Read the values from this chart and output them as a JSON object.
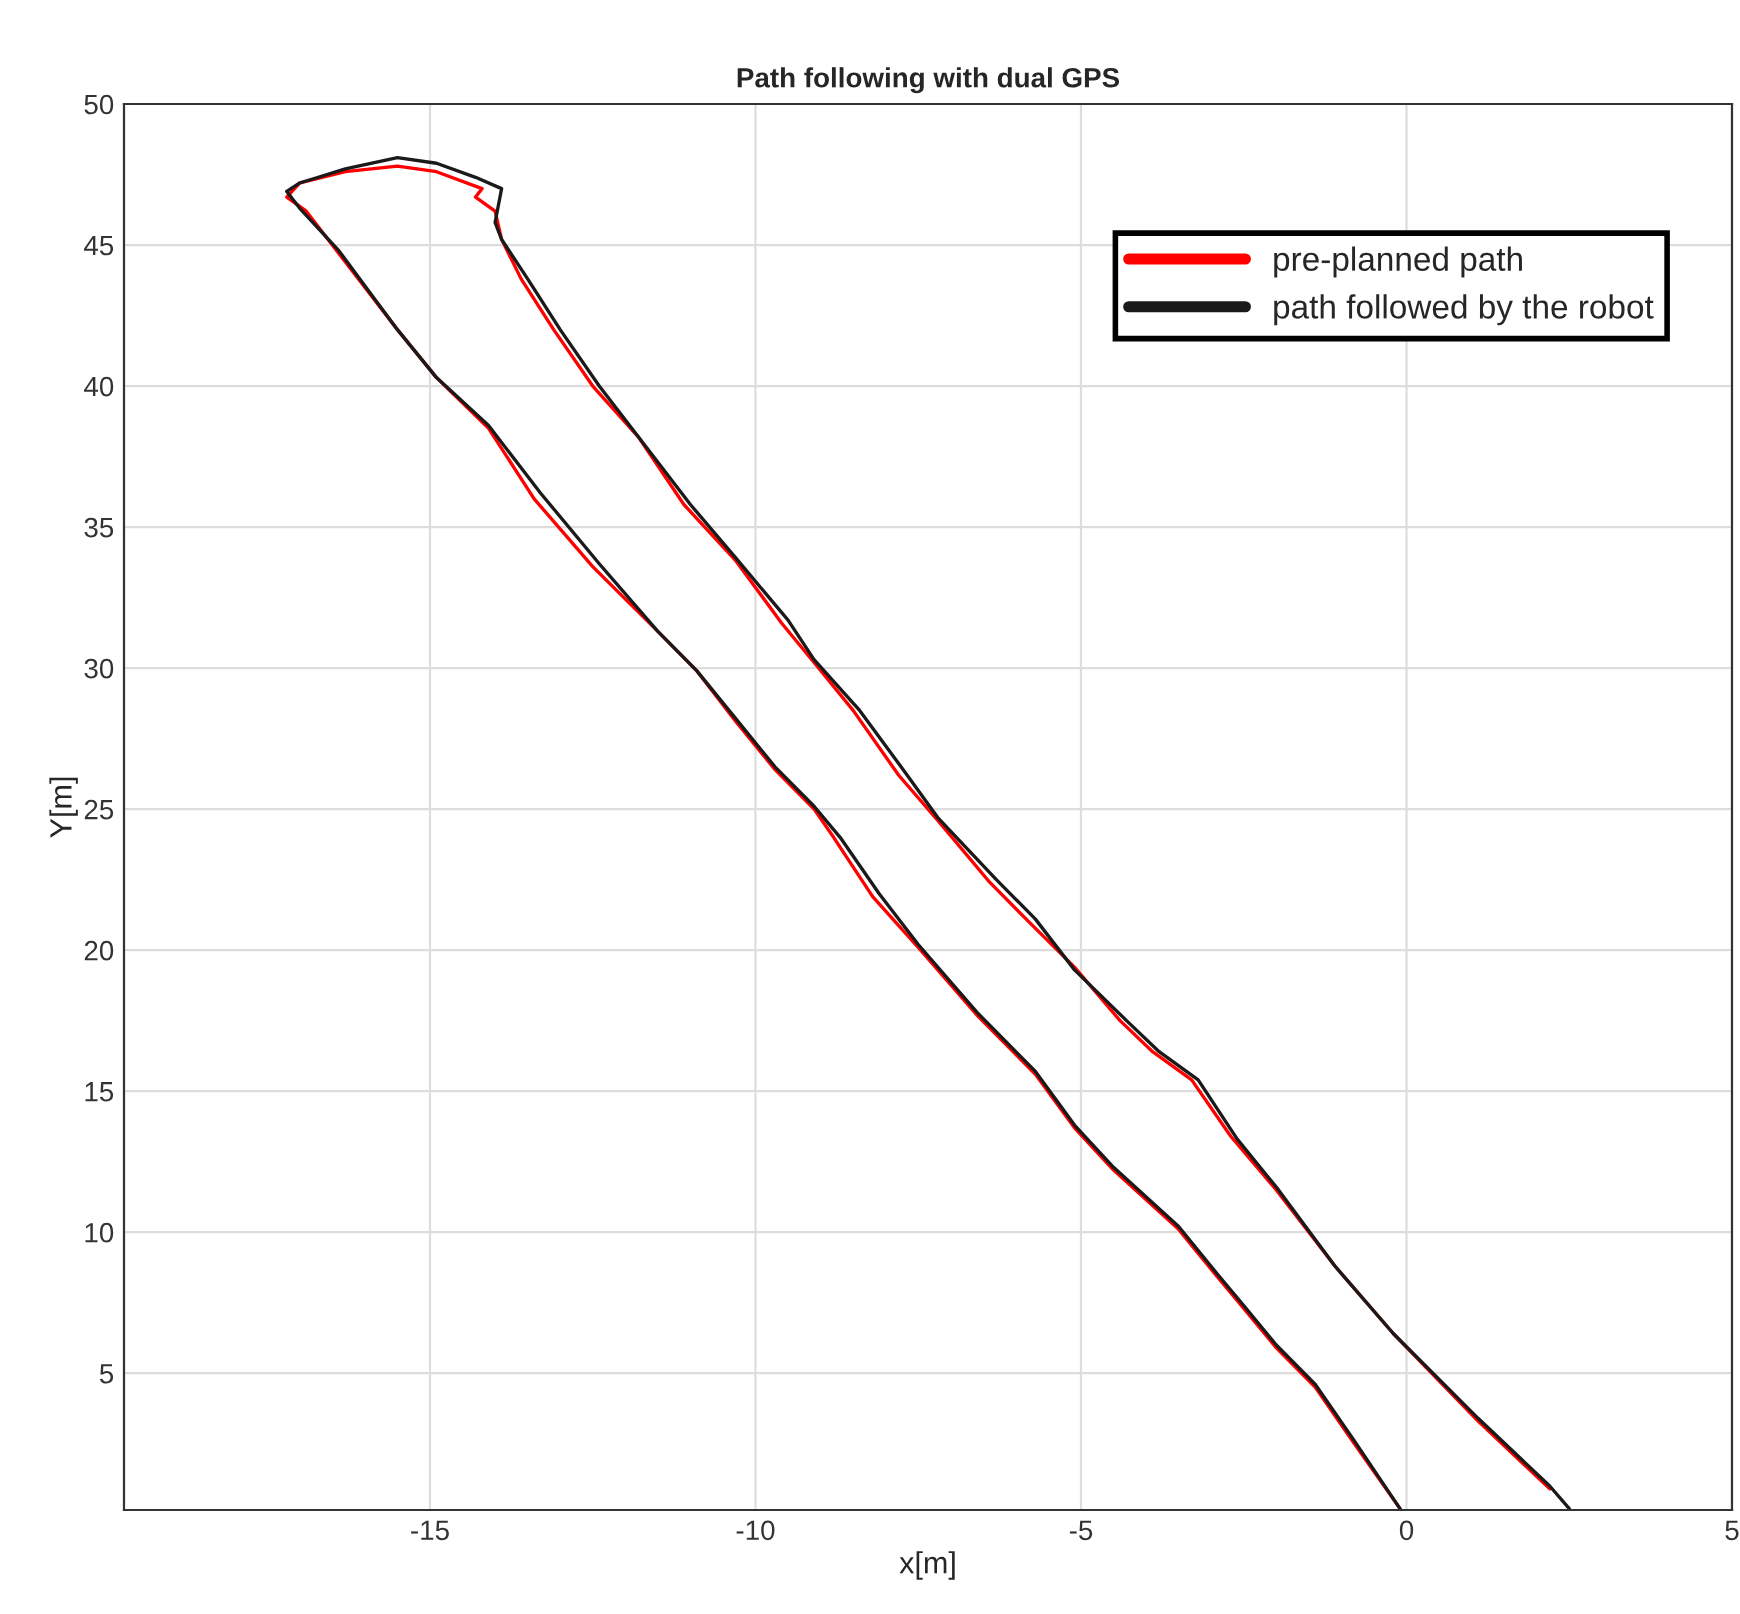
{
  "chart_data": {
    "type": "line",
    "title": "Path following with dual GPS",
    "xlabel": "x[m]",
    "ylabel": "Y[m]",
    "xlim": [
      -19.7,
      5
    ],
    "ylim": [
      0.15,
      50
    ],
    "xticks": [
      -15,
      -10,
      -5,
      0,
      5
    ],
    "yticks": [
      5,
      10,
      15,
      20,
      25,
      30,
      35,
      40,
      45,
      50
    ],
    "grid": true,
    "legend": "top right",
    "marker": "none",
    "line_style": "solid",
    "series": [
      {
        "name": "pre-planned path",
        "color": "#ff0000",
        "x": [
          2.2,
          1.1,
          -0.2,
          -1.1,
          -2.0,
          -2.7,
          -3.3,
          -3.9,
          -4.4,
          -5.1,
          -5.8,
          -6.4,
          -7.2,
          -7.8,
          -8.5,
          -9.1,
          -9.6,
          -10.3,
          -11.1,
          -11.8,
          -12.5,
          -13.1,
          -13.6,
          -13.9,
          -14.0,
          -14.3,
          -14.2,
          -14.9,
          -15.5,
          -16.3,
          -17.0,
          -17.2,
          -16.9,
          -16.4,
          -15.5,
          -14.9,
          -14.1,
          -13.4,
          -12.5,
          -11.5,
          -10.9,
          -10.3,
          -9.7,
          -9.1,
          -8.8,
          -8.2,
          -7.5,
          -6.6,
          -5.7,
          -5.1,
          -4.5,
          -3.5,
          -2.9,
          -2.5,
          -2.0,
          -1.4,
          -0.8,
          -0.1
        ],
        "values": [
          0.9,
          3.3,
          6.4,
          8.8,
          11.5,
          13.4,
          15.4,
          16.4,
          17.5,
          19.4,
          21.0,
          22.4,
          24.6,
          26.2,
          28.5,
          30.2,
          31.6,
          33.8,
          35.8,
          38.2,
          40.0,
          42.0,
          43.8,
          45.2,
          46.2,
          46.7,
          47.0,
          47.6,
          47.8,
          47.6,
          47.2,
          46.7,
          46.2,
          44.7,
          42.0,
          40.3,
          38.5,
          36.0,
          33.6,
          31.3,
          29.9,
          28.1,
          26.4,
          25.0,
          24.0,
          21.9,
          20.1,
          17.7,
          15.6,
          13.7,
          12.2,
          10.1,
          8.4,
          7.3,
          5.9,
          4.5,
          2.5,
          0.2
        ]
      },
      {
        "name": "path followed by the robot",
        "color": "#1a1a1a",
        "x": [
          2.5,
          2.2,
          1.1,
          -0.2,
          -1.1,
          -2.0,
          -2.6,
          -3.2,
          -3.8,
          -4.3,
          -5.1,
          -5.7,
          -6.3,
          -7.2,
          -7.7,
          -8.4,
          -9.1,
          -9.5,
          -10.3,
          -11.0,
          -11.8,
          -12.4,
          -13.0,
          -13.5,
          -13.9,
          -14.0,
          -13.9,
          -14.3,
          -14.9,
          -15.5,
          -16.3,
          -17.0,
          -17.2,
          -17.0,
          -16.4,
          -15.5,
          -14.9,
          -14.1,
          -13.3,
          -12.4,
          -11.5,
          -10.9,
          -10.3,
          -9.7,
          -9.1,
          -8.7,
          -8.1,
          -7.5,
          -6.6,
          -5.7,
          -5.1,
          -4.5,
          -3.5,
          -2.9,
          -2.5,
          -2.0,
          -1.4,
          -0.8,
          -0.1
        ],
        "values": [
          0.2,
          1.0,
          3.4,
          6.4,
          8.8,
          11.6,
          13.3,
          15.4,
          16.4,
          17.5,
          19.3,
          21.1,
          22.5,
          24.7,
          26.3,
          28.5,
          30.3,
          31.7,
          33.9,
          35.8,
          38.2,
          40.0,
          42.0,
          43.8,
          45.2,
          45.8,
          47.0,
          47.4,
          47.9,
          48.1,
          47.7,
          47.2,
          46.9,
          46.3,
          44.8,
          42.0,
          40.3,
          38.6,
          36.2,
          33.7,
          31.3,
          29.9,
          28.2,
          26.5,
          25.1,
          24.0,
          22.0,
          20.2,
          17.8,
          15.7,
          13.8,
          12.3,
          10.2,
          8.5,
          7.4,
          6.0,
          4.6,
          2.6,
          0.2
        ]
      }
    ]
  }
}
